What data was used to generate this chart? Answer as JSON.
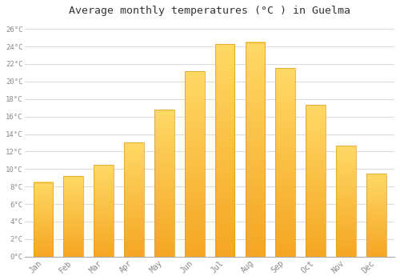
{
  "months": [
    "Jan",
    "Feb",
    "Mar",
    "Apr",
    "May",
    "Jun",
    "Jul",
    "Aug",
    "Sep",
    "Oct",
    "Nov",
    "Dec"
  ],
  "temperatures": [
    8.5,
    9.2,
    10.5,
    13.0,
    16.8,
    21.2,
    24.3,
    24.5,
    21.5,
    17.3,
    12.7,
    9.5
  ],
  "bar_color_bottom": "#F5A623",
  "bar_color_top": "#FFD966",
  "bar_edge_color": "#E8991C",
  "background_color": "#FFFFFF",
  "grid_color": "#DDDDDD",
  "title": "Average monthly temperatures (°C ) in Guelma",
  "title_fontsize": 9.5,
  "tick_label_color": "#888888",
  "ylim": [
    0,
    27
  ],
  "yticks": [
    0,
    2,
    4,
    6,
    8,
    10,
    12,
    14,
    16,
    18,
    20,
    22,
    24,
    26
  ],
  "figsize": [
    5.0,
    3.5
  ],
  "dpi": 100
}
